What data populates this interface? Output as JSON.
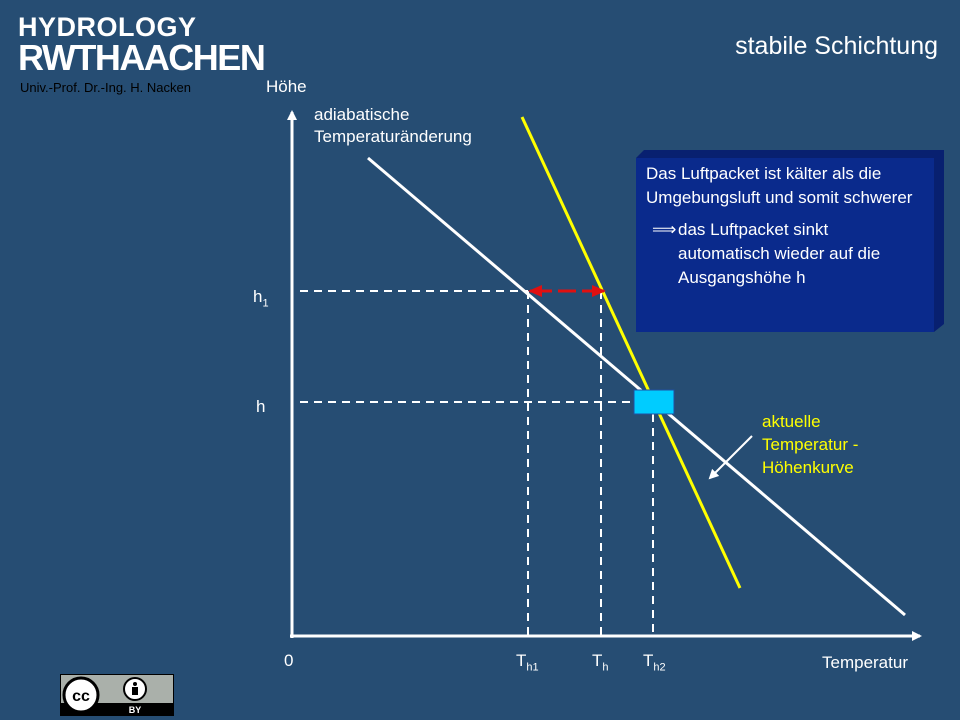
{
  "header": {
    "logo_line1": "HYDROLOGY",
    "logo_line2": "RWTHAACHEN",
    "professor": "Univ.-Prof. Dr.-Ing. H. Nacken",
    "title": "stabile Schichtung"
  },
  "axes": {
    "y_label": "Höhe",
    "x_label": "Temperatur",
    "origin": "0"
  },
  "labels": {
    "adiabatic_line1": "adiabatische",
    "adiabatic_line2": "Temperaturänderung",
    "h1": "h",
    "h1_sub": "1",
    "h": "h",
    "T_h1": "T",
    "T_h1_sub": "h1",
    "T_h": "T",
    "T_h_sub": "h",
    "T_h2": "T",
    "T_h2_sub": "h2",
    "current_line1": "aktuelle",
    "current_line2": "Temperatur -",
    "current_line3": "Höhenkurve"
  },
  "info_box": {
    "text1": "Das Luftpacket ist kälter als die Umgebungsluft und somit schwerer",
    "arrow": "⟹",
    "text2": "das Luftpacket sinkt automatisch wieder auf die Ausgangshöhe h"
  },
  "license": {
    "cc": "cc",
    "by": "BY"
  },
  "colors": {
    "background": "#264d73",
    "adiabatic_line": "#ffffff",
    "environment_line": "#ffff00",
    "info_box": "#0a2a8c",
    "parcel": "#00ccff",
    "arrow_red": "#e01010"
  }
}
